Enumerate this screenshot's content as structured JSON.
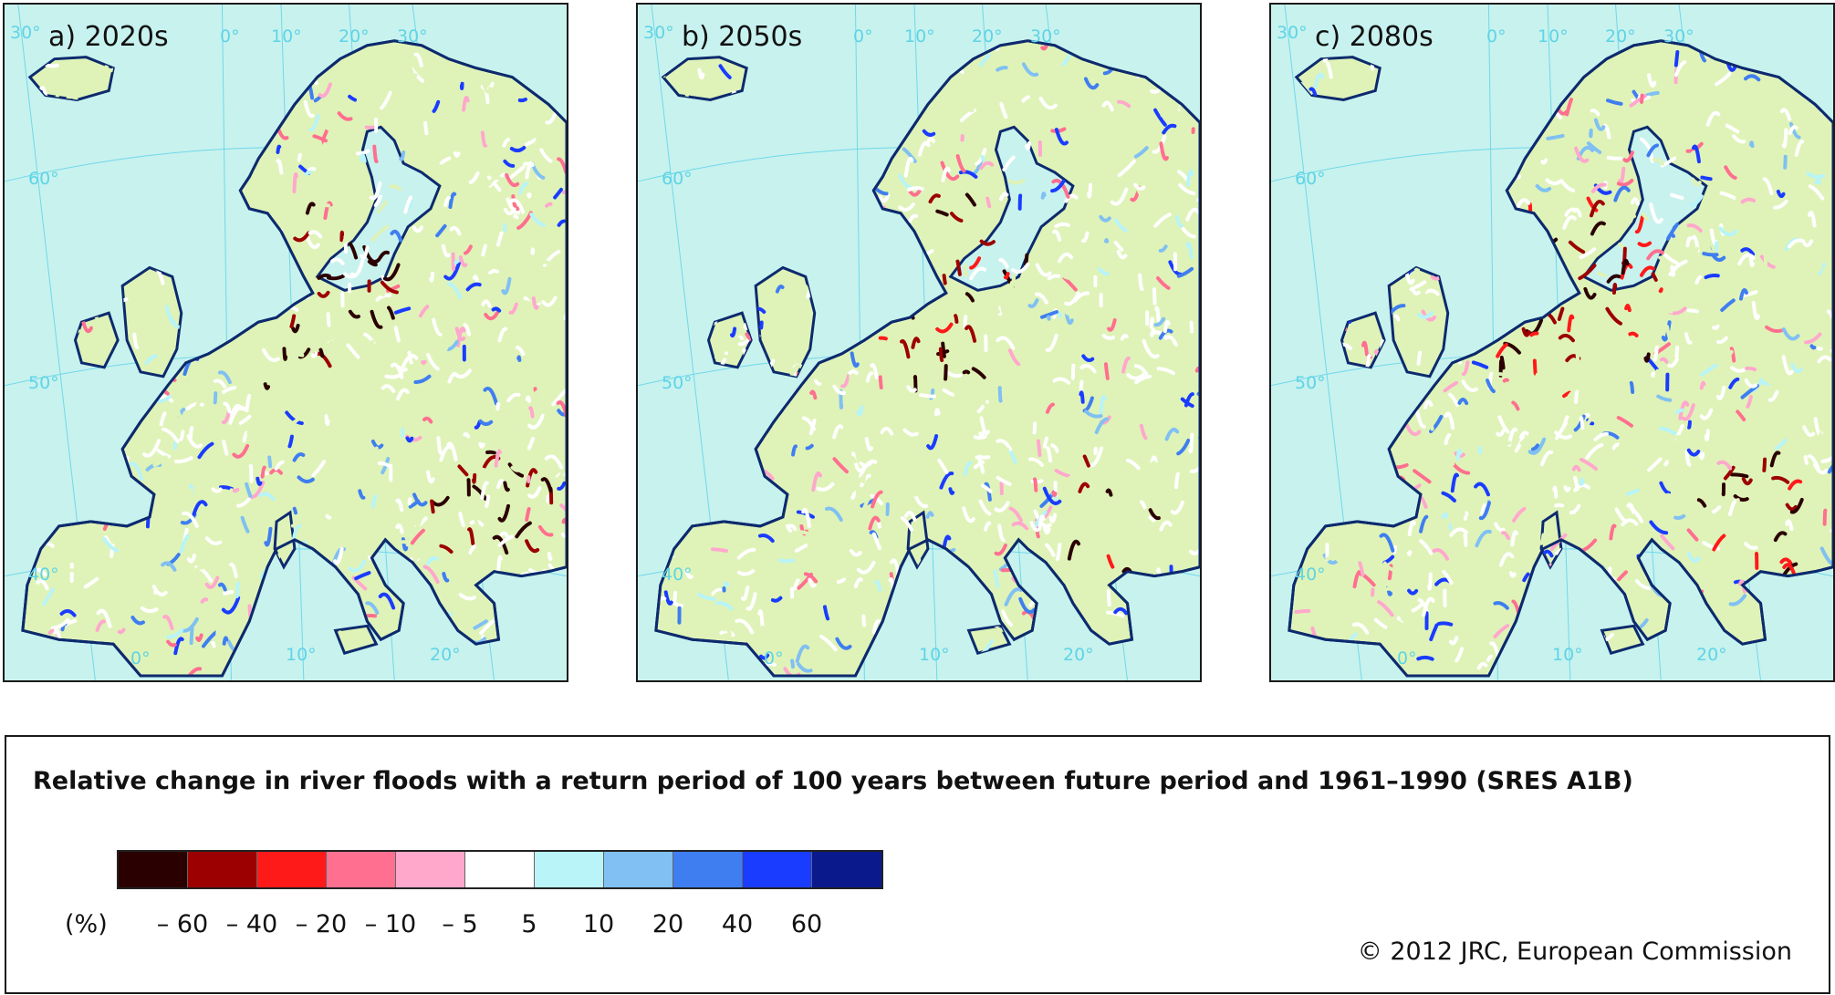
{
  "panels": [
    {
      "label": "a) 2020s"
    },
    {
      "label": "b) 2050s"
    },
    {
      "label": "c) 2080s"
    }
  ],
  "graticule_labels": [
    "30°",
    "0°",
    "10°",
    "20°",
    "30°",
    "60°",
    "50°",
    "40°",
    "10°",
    "20°",
    "0°"
  ],
  "legend": {
    "title": "Relative change in river floods with a return period of 100 years between future period and 1961–1990 (SRES A1B)",
    "unit": "(%)",
    "ticks": [
      "– 60",
      "– 40",
      "– 20",
      "– 10",
      "– 5",
      "5",
      "10",
      "20",
      "40",
      "60"
    ],
    "colors": [
      "#2b0000",
      "#9c0000",
      "#ff1a1a",
      "#ff6f8f",
      "#ffa8cc",
      "#ffffff",
      "#b8f4f8",
      "#80c0f2",
      "#3f7ef0",
      "#1a3cff",
      "#0a1a8c"
    ]
  },
  "map_colors": {
    "sea": "#c8f2ee",
    "land": "#dff3b8",
    "coast": "#0d2a6e",
    "graticule": "#6fd8ea"
  },
  "copyright": "© 2012 JRC, European Commission"
}
